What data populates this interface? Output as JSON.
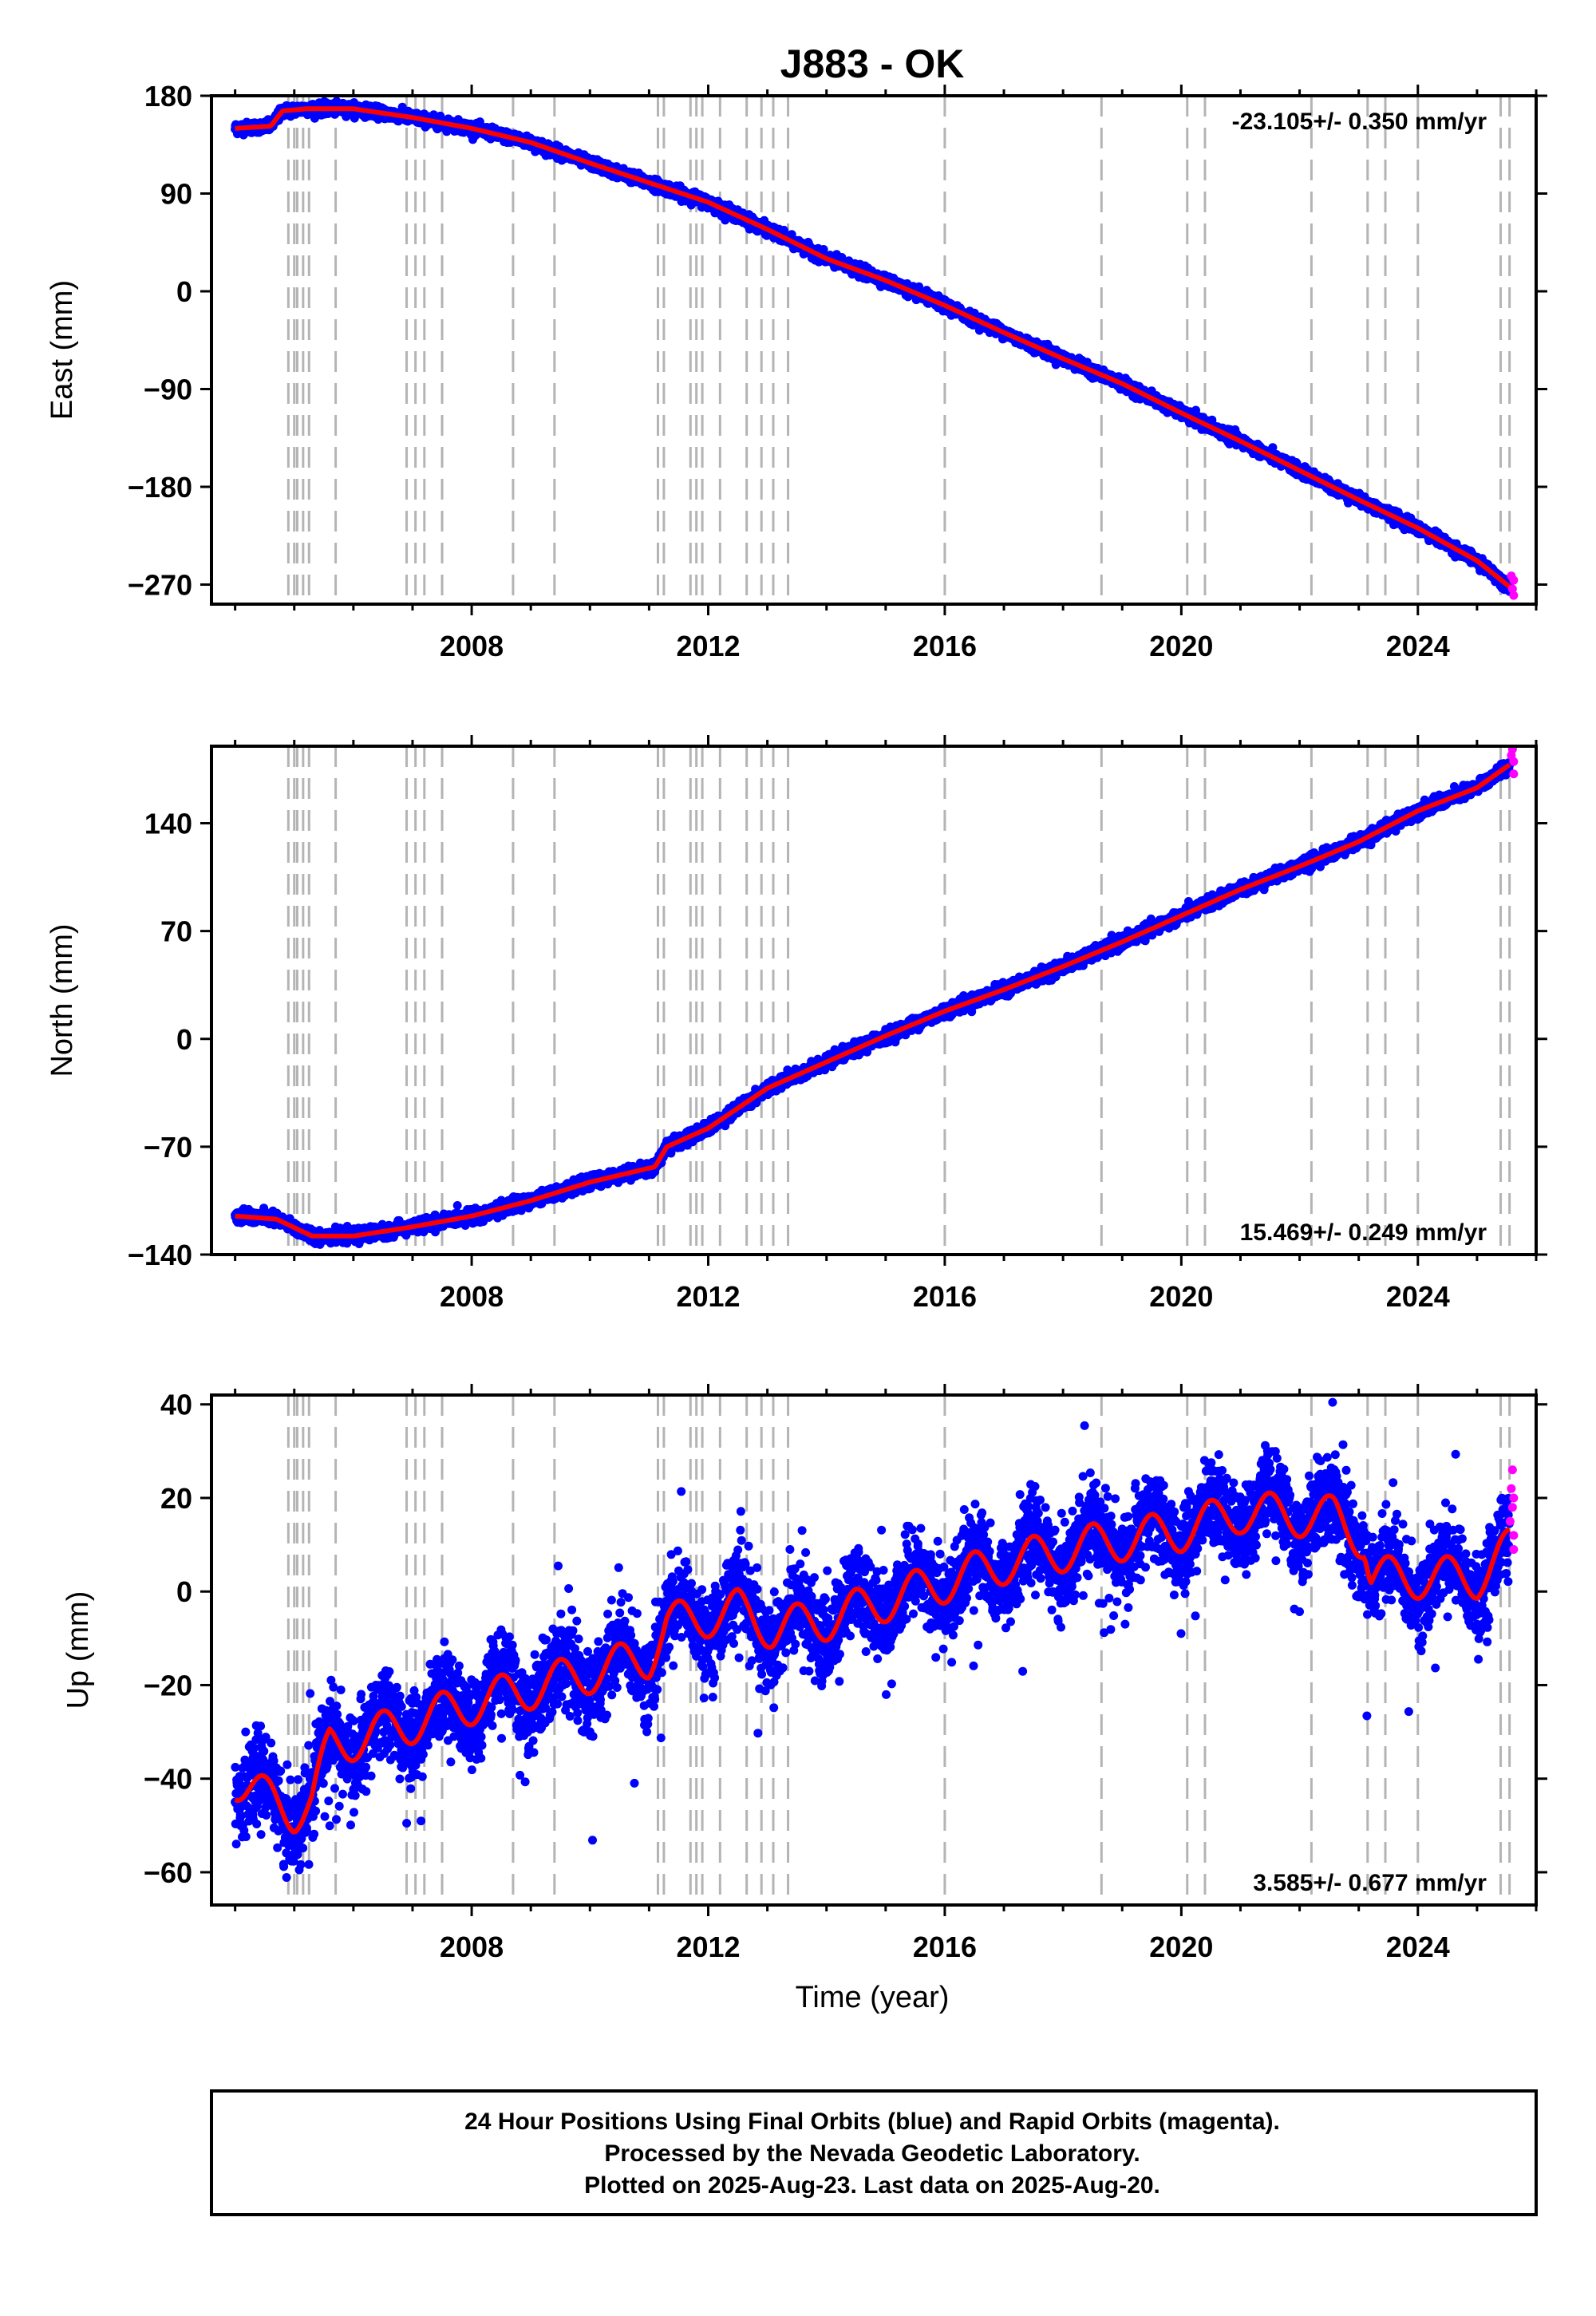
{
  "chart_data": [
    {
      "type": "scatter",
      "title": "J883 - OK",
      "ylabel": "East (mm)",
      "xlabel": "",
      "xlim": [
        2003.6,
        2026.0
      ],
      "ylim": [
        -288,
        180
      ],
      "yticks": [
        180,
        90,
        0,
        -90,
        -180,
        -270
      ],
      "ytick_labels": [
        "180",
        "90",
        "0",
        "−90",
        "−180",
        "−270"
      ],
      "xticks": [
        2008,
        2012,
        2016,
        2020,
        2024
      ],
      "xtick_labels": [
        "2008",
        "2012",
        "2016",
        "2020",
        "2024"
      ],
      "rate": "-23.105+/- 0.350 mm/yr",
      "rate_position": "top-right",
      "colors": {
        "final": "#0000ff",
        "rapid": "#ff00ff",
        "model": "#ff0000",
        "offsets": "#b4b4b4"
      },
      "offsets": [
        2004.9,
        2005.0,
        2005.05,
        2005.15,
        2005.25,
        2005.7,
        2006.9,
        2007.05,
        2007.2,
        2007.5,
        2008.7,
        2009.4,
        2011.15,
        2011.25,
        2011.7,
        2011.8,
        2011.9,
        2012.2,
        2012.65,
        2012.9,
        2013.1,
        2013.35,
        2016.0,
        2018.65,
        2020.1,
        2020.4,
        2022.2,
        2023.15,
        2023.45,
        2024.0,
        2025.4,
        2025.55
      ],
      "trend": {
        "x": [
          2004.0,
          2004.6,
          2004.8,
          2005.2,
          2006.0,
          2007.0,
          2008.0,
          2009.0,
          2010.0,
          2011.0,
          2012.0,
          2013.0,
          2014.0,
          2015.0,
          2016.0,
          2017.0,
          2018.0,
          2019.0,
          2020.0,
          2021.0,
          2022.0,
          2023.0,
          2024.0,
          2025.0,
          2025.55
        ],
        "y": [
          150,
          152,
          166,
          168,
          168,
          160,
          150,
          137,
          118,
          100,
          82,
          57,
          30,
          10,
          -13,
          -38,
          -62,
          -85,
          -112,
          -138,
          -165,
          -192,
          -218,
          -248,
          -272
        ]
      },
      "series": [
        {
          "x": [
            2004.0,
            2004.6,
            2004.8,
            2005.2,
            2006.0,
            2007.0,
            2008.0,
            2009.0,
            2010.0,
            2011.0,
            2012.0,
            2013.0,
            2014.0,
            2015.0,
            2016.0,
            2017.0,
            2018.0,
            2019.0,
            2020.0,
            2021.0,
            2022.0,
            2023.0,
            2024.0,
            2025.0,
            2025.55
          ],
          "y": [
            150,
            152,
            166,
            168,
            168,
            160,
            150,
            137,
            118,
            100,
            82,
            57,
            30,
            10,
            -13,
            -38,
            -62,
            -85,
            -112,
            -138,
            -165,
            -192,
            -218,
            -248,
            -272
          ],
          "noise": 2.5,
          "spike_prob": 0.0,
          "density": 260
        },
        {
          "rapid_x": [
            2025.58,
            2025.6,
            2025.62,
            2025.62
          ],
          "rapid_y": [
            -262,
            -274,
            -280,
            -266
          ]
        }
      ]
    },
    {
      "type": "scatter",
      "title": "",
      "ylabel": "North (mm)",
      "xlabel": "",
      "xlim": [
        2003.6,
        2026.0
      ],
      "ylim": [
        -140,
        190
      ],
      "yticks": [
        140,
        70,
        0,
        -70,
        -140
      ],
      "ytick_labels": [
        "140",
        "70",
        "0",
        "−70",
        "−140"
      ],
      "xticks": [
        2008,
        2012,
        2016,
        2020,
        2024
      ],
      "xtick_labels": [
        "2008",
        "2012",
        "2016",
        "2020",
        "2024"
      ],
      "rate": "15.469+/- 0.249 mm/yr",
      "rate_position": "bottom-right",
      "colors": {
        "final": "#0000ff",
        "rapid": "#ff00ff",
        "model": "#ff0000",
        "offsets": "#b4b4b4"
      },
      "offsets": [
        2004.9,
        2005.0,
        2005.05,
        2005.15,
        2005.25,
        2005.7,
        2006.9,
        2007.05,
        2007.2,
        2007.5,
        2008.7,
        2009.4,
        2011.15,
        2011.25,
        2011.7,
        2011.8,
        2011.9,
        2012.2,
        2012.65,
        2012.9,
        2013.1,
        2013.35,
        2016.0,
        2018.65,
        2020.1,
        2020.4,
        2022.2,
        2023.15,
        2023.45,
        2024.0,
        2025.4,
        2025.55
      ],
      "trend": {
        "x": [
          2004.0,
          2004.7,
          2005.3,
          2006.0,
          2007.0,
          2008.0,
          2009.0,
          2010.0,
          2011.1,
          2011.3,
          2012.0,
          2013.0,
          2014.0,
          2015.0,
          2016.0,
          2017.0,
          2018.0,
          2019.0,
          2020.0,
          2021.0,
          2022.0,
          2023.0,
          2024.0,
          2025.0,
          2025.55
        ],
        "y": [
          -115,
          -117,
          -128,
          -128,
          -122,
          -115,
          -105,
          -93,
          -83,
          -70,
          -58,
          -32,
          -15,
          2,
          18,
          32,
          47,
          63,
          80,
          97,
          112,
          128,
          148,
          163,
          178
        ]
      },
      "series": [
        {
          "x": [
            2004.0,
            2004.7,
            2005.3,
            2006.0,
            2007.0,
            2008.0,
            2009.0,
            2010.0,
            2011.1,
            2011.3,
            2012.0,
            2013.0,
            2014.0,
            2015.0,
            2016.0,
            2017.0,
            2018.0,
            2019.0,
            2020.0,
            2021.0,
            2022.0,
            2023.0,
            2024.0,
            2025.0,
            2025.55
          ],
          "y": [
            -115,
            -117,
            -128,
            -128,
            -122,
            -115,
            -105,
            -93,
            -83,
            -70,
            -58,
            -32,
            -15,
            2,
            18,
            32,
            47,
            63,
            80,
            97,
            112,
            128,
            148,
            163,
            178
          ],
          "noise": 2.0,
          "spike_prob": 0.0,
          "density": 260
        },
        {
          "rapid_x": [
            2025.58,
            2025.6,
            2025.62,
            2025.62
          ],
          "rapid_y": [
            184,
            188,
            172,
            180
          ]
        }
      ]
    },
    {
      "type": "scatter",
      "title": "",
      "ylabel": "Up (mm)",
      "xlabel": "Time (year)",
      "xlim": [
        2003.6,
        2026.0
      ],
      "ylim": [
        -67,
        42
      ],
      "yticks": [
        40,
        20,
        0,
        -20,
        -40,
        -60
      ],
      "ytick_labels": [
        "40",
        "20",
        "0",
        "−20",
        "−40",
        "−60"
      ],
      "xticks": [
        2008,
        2012,
        2016,
        2020,
        2024
      ],
      "xtick_labels": [
        "2008",
        "2012",
        "2016",
        "2020",
        "2024"
      ],
      "rate": "3.585+/- 0.677 mm/yr",
      "rate_position": "bottom-right",
      "colors": {
        "final": "#0000ff",
        "rapid": "#ff00ff",
        "model": "#ff0000",
        "offsets": "#b4b4b4"
      },
      "offsets": [
        2004.9,
        2005.0,
        2005.05,
        2005.15,
        2005.25,
        2005.7,
        2006.9,
        2007.05,
        2007.2,
        2007.5,
        2008.7,
        2009.4,
        2011.15,
        2011.25,
        2011.7,
        2011.8,
        2011.9,
        2012.2,
        2012.65,
        2012.9,
        2013.1,
        2013.35,
        2016.0,
        2018.65,
        2020.1,
        2020.4,
        2022.2,
        2023.15,
        2023.45,
        2024.0,
        2025.4,
        2025.55
      ],
      "trend": {
        "x": [
          2004.0,
          2004.5,
          2005.0,
          2005.3,
          2005.6,
          2006.5,
          2008.0,
          2009.5,
          2011.0,
          2011.3,
          2012.5,
          2013.1,
          2014.0,
          2015.5,
          2017.0,
          2018.5,
          2020.0,
          2021.0,
          2022.2,
          2022.6,
          2023.1,
          2023.2,
          2024.0,
          2025.0,
          2025.55
        ],
        "y": [
          -40,
          -44,
          -47,
          -45,
          -33,
          -30,
          -24,
          -19,
          -14,
          -7,
          -4,
          -8,
          -6,
          0,
          6,
          10,
          13,
          17,
          16,
          16,
          11,
          3,
          3,
          3,
          9
        ]
      },
      "seasonal_amp": 4.5,
      "series": [
        {
          "x": [
            2004.0,
            2004.5,
            2005.0,
            2005.3,
            2005.6,
            2006.5,
            2008.0,
            2009.5,
            2011.0,
            2011.3,
            2012.5,
            2013.1,
            2014.0,
            2015.5,
            2017.0,
            2018.5,
            2020.0,
            2021.0,
            2022.2,
            2022.6,
            2023.1,
            2023.2,
            2024.0,
            2025.0,
            2025.55
          ],
          "y": [
            -40,
            -44,
            -47,
            -45,
            -33,
            -30,
            -24,
            -19,
            -14,
            -7,
            -4,
            -8,
            -6,
            0,
            6,
            10,
            13,
            17,
            16,
            16,
            11,
            3,
            3,
            3,
            9
          ],
          "noise": 4.5,
          "spike_prob": 0.03,
          "density": 260
        },
        {
          "rapid_x": [
            2025.56,
            2025.58,
            2025.6,
            2025.6,
            2025.62,
            2025.62,
            2025.62
          ],
          "rapid_y": [
            15,
            22,
            26,
            18,
            12,
            9,
            20
          ]
        }
      ]
    }
  ],
  "footer": {
    "line1": "24 Hour Positions Using Final Orbits (blue) and Rapid Orbits (magenta).",
    "line2": "Processed by the Nevada Geodetic Laboratory.",
    "line3": "Plotted on 2025-Aug-23. Last data on 2025-Aug-20."
  }
}
